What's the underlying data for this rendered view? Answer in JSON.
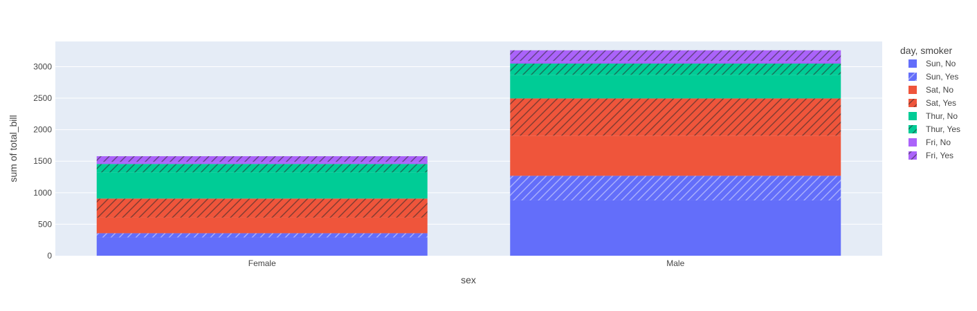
{
  "chart_data": {
    "type": "bar",
    "barmode": "stack",
    "categories": [
      "Female",
      "Male"
    ],
    "xlabel": "sex",
    "ylabel": "sum of total_bill",
    "ylim": [
      0,
      3400
    ],
    "yticks": [
      0,
      500,
      1000,
      1500,
      2000,
      2500,
      3000
    ],
    "grid": true,
    "legend_title": "day, smoker",
    "legend_position": "right",
    "series": [
      {
        "name": "Sun, No",
        "values": [
          291,
          878
        ],
        "color": "#636efa",
        "pattern": "none"
      },
      {
        "name": "Sun, Yes",
        "values": [
          66,
          390
        ],
        "color": "#636efa",
        "pattern": "hatch"
      },
      {
        "name": "Sat, No",
        "values": [
          247,
          638
        ],
        "color": "#ef553b",
        "pattern": "none"
      },
      {
        "name": "Sat, Yes",
        "values": [
          303,
          590
        ],
        "color": "#ef553b",
        "pattern": "hatch"
      },
      {
        "name": "Thur, No",
        "values": [
          416,
          375
        ],
        "color": "#00cc96",
        "pattern": "none"
      },
      {
        "name": "Thur, Yes",
        "values": [
          133,
          178
        ],
        "color": "#00cc96",
        "pattern": "hatch"
      },
      {
        "name": "Fri, No",
        "values": [
          33,
          41
        ],
        "color": "#ab63fa",
        "pattern": "none"
      },
      {
        "name": "Fri, Yes",
        "values": [
          90,
          170
        ],
        "color": "#ab63fa",
        "pattern": "hatch"
      }
    ]
  }
}
